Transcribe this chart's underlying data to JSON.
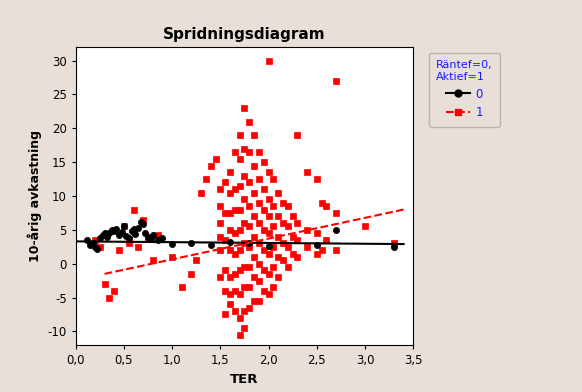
{
  "title": "Spridningsdiagram",
  "xlabel": "TER",
  "ylabel": "10-årig avkastning",
  "background_color": "#e8e0d8",
  "plot_bg_color": "#ffffff",
  "xlim": [
    0,
    3.5
  ],
  "ylim": [
    -12,
    32
  ],
  "xticks": [
    0.0,
    0.5,
    1.0,
    1.5,
    2.0,
    2.5,
    3.0,
    3.5
  ],
  "yticks": [
    -10,
    -5,
    0,
    5,
    10,
    15,
    20,
    25,
    30
  ],
  "legend_title": "Räntef=0,\nAktief=1",
  "series0_color": "#000000",
  "series1_color": "#ff0000",
  "series0_data": [
    [
      0.12,
      3.5
    ],
    [
      0.15,
      2.8
    ],
    [
      0.18,
      3.0
    ],
    [
      0.2,
      2.5
    ],
    [
      0.22,
      2.2
    ],
    [
      0.25,
      3.8
    ],
    [
      0.28,
      4.2
    ],
    [
      0.3,
      4.5
    ],
    [
      0.32,
      3.9
    ],
    [
      0.35,
      4.6
    ],
    [
      0.38,
      5.0
    ],
    [
      0.4,
      4.8
    ],
    [
      0.42,
      5.2
    ],
    [
      0.45,
      4.3
    ],
    [
      0.48,
      4.7
    ],
    [
      0.5,
      5.5
    ],
    [
      0.52,
      4.1
    ],
    [
      0.55,
      3.8
    ],
    [
      0.58,
      4.9
    ],
    [
      0.6,
      5.1
    ],
    [
      0.62,
      4.4
    ],
    [
      0.65,
      5.3
    ],
    [
      0.68,
      6.2
    ],
    [
      0.7,
      5.8
    ],
    [
      0.72,
      4.6
    ],
    [
      0.75,
      4.0
    ],
    [
      0.78,
      3.7
    ],
    [
      0.8,
      4.2
    ],
    [
      0.85,
      3.5
    ],
    [
      0.9,
      3.8
    ],
    [
      1.0,
      2.9
    ],
    [
      1.2,
      3.1
    ],
    [
      1.4,
      2.8
    ],
    [
      1.6,
      3.2
    ],
    [
      1.8,
      3.0
    ],
    [
      2.0,
      2.6
    ],
    [
      2.5,
      2.8
    ],
    [
      2.7,
      5.0
    ],
    [
      3.3,
      2.5
    ]
  ],
  "series1_data": [
    [
      0.2,
      3.5
    ],
    [
      0.25,
      2.5
    ],
    [
      0.3,
      -3.0
    ],
    [
      0.35,
      -5.0
    ],
    [
      0.4,
      -4.0
    ],
    [
      0.45,
      2.0
    ],
    [
      0.5,
      5.5
    ],
    [
      0.55,
      3.0
    ],
    [
      0.6,
      8.0
    ],
    [
      0.65,
      2.5
    ],
    [
      0.7,
      6.5
    ],
    [
      0.75,
      3.8
    ],
    [
      0.8,
      0.5
    ],
    [
      0.85,
      4.2
    ],
    [
      1.0,
      1.0
    ],
    [
      1.1,
      -3.5
    ],
    [
      1.2,
      -1.5
    ],
    [
      1.25,
      0.5
    ],
    [
      1.3,
      10.5
    ],
    [
      1.35,
      12.5
    ],
    [
      1.4,
      14.5
    ],
    [
      1.45,
      15.5
    ],
    [
      1.5,
      11.0
    ],
    [
      1.5,
      8.5
    ],
    [
      1.5,
      6.0
    ],
    [
      1.5,
      4.0
    ],
    [
      1.5,
      2.0
    ],
    [
      1.5,
      -2.0
    ],
    [
      1.55,
      12.0
    ],
    [
      1.55,
      7.5
    ],
    [
      1.55,
      3.5
    ],
    [
      1.55,
      -1.0
    ],
    [
      1.55,
      -4.0
    ],
    [
      1.55,
      -7.5
    ],
    [
      1.6,
      13.5
    ],
    [
      1.6,
      10.5
    ],
    [
      1.6,
      7.5
    ],
    [
      1.6,
      5.0
    ],
    [
      1.6,
      2.0
    ],
    [
      1.6,
      -2.0
    ],
    [
      1.6,
      -4.5
    ],
    [
      1.6,
      -6.0
    ],
    [
      1.65,
      16.5
    ],
    [
      1.65,
      11.0
    ],
    [
      1.65,
      8.0
    ],
    [
      1.65,
      4.5
    ],
    [
      1.65,
      1.5
    ],
    [
      1.65,
      -1.5
    ],
    [
      1.65,
      -4.0
    ],
    [
      1.65,
      -7.0
    ],
    [
      1.7,
      19.0
    ],
    [
      1.7,
      15.5
    ],
    [
      1.7,
      11.5
    ],
    [
      1.7,
      8.0
    ],
    [
      1.7,
      5.0
    ],
    [
      1.7,
      2.0
    ],
    [
      1.7,
      -1.0
    ],
    [
      1.7,
      -4.5
    ],
    [
      1.7,
      -8.0
    ],
    [
      1.7,
      -10.5
    ],
    [
      1.75,
      23.0
    ],
    [
      1.75,
      17.0
    ],
    [
      1.75,
      13.0
    ],
    [
      1.75,
      9.5
    ],
    [
      1.75,
      6.0
    ],
    [
      1.75,
      3.0
    ],
    [
      1.75,
      -0.5
    ],
    [
      1.75,
      -3.5
    ],
    [
      1.75,
      -7.0
    ],
    [
      1.75,
      -9.5
    ],
    [
      1.8,
      21.0
    ],
    [
      1.8,
      16.5
    ],
    [
      1.8,
      12.0
    ],
    [
      1.8,
      8.5
    ],
    [
      1.8,
      5.5
    ],
    [
      1.8,
      2.5
    ],
    [
      1.8,
      -0.5
    ],
    [
      1.8,
      -3.5
    ],
    [
      1.8,
      -6.5
    ],
    [
      1.85,
      19.0
    ],
    [
      1.85,
      14.5
    ],
    [
      1.85,
      10.5
    ],
    [
      1.85,
      7.0
    ],
    [
      1.85,
      4.0
    ],
    [
      1.85,
      1.0
    ],
    [
      1.85,
      -2.0
    ],
    [
      1.85,
      -5.5
    ],
    [
      1.9,
      16.5
    ],
    [
      1.9,
      12.5
    ],
    [
      1.9,
      9.0
    ],
    [
      1.9,
      6.0
    ],
    [
      1.9,
      3.0
    ],
    [
      1.9,
      0.0
    ],
    [
      1.9,
      -2.5
    ],
    [
      1.9,
      -5.5
    ],
    [
      1.95,
      15.0
    ],
    [
      1.95,
      11.0
    ],
    [
      1.95,
      8.0
    ],
    [
      1.95,
      5.0
    ],
    [
      1.95,
      2.0
    ],
    [
      1.95,
      -1.0
    ],
    [
      1.95,
      -4.0
    ],
    [
      2.0,
      30.0
    ],
    [
      2.0,
      13.5
    ],
    [
      2.0,
      9.5
    ],
    [
      2.0,
      7.0
    ],
    [
      2.0,
      4.5
    ],
    [
      2.0,
      1.5
    ],
    [
      2.0,
      -1.5
    ],
    [
      2.0,
      -4.5
    ],
    [
      2.05,
      12.5
    ],
    [
      2.05,
      8.5
    ],
    [
      2.05,
      5.5
    ],
    [
      2.05,
      2.5
    ],
    [
      2.05,
      -0.5
    ],
    [
      2.05,
      -3.5
    ],
    [
      2.1,
      10.5
    ],
    [
      2.1,
      7.0
    ],
    [
      2.1,
      4.0
    ],
    [
      2.1,
      1.0
    ],
    [
      2.1,
      -2.0
    ],
    [
      2.15,
      9.0
    ],
    [
      2.15,
      6.0
    ],
    [
      2.15,
      3.0
    ],
    [
      2.15,
      0.5
    ],
    [
      2.2,
      8.5
    ],
    [
      2.2,
      5.5
    ],
    [
      2.2,
      2.5
    ],
    [
      2.2,
      -0.5
    ],
    [
      2.25,
      7.0
    ],
    [
      2.25,
      4.0
    ],
    [
      2.25,
      1.5
    ],
    [
      2.3,
      19.0
    ],
    [
      2.3,
      6.0
    ],
    [
      2.3,
      3.5
    ],
    [
      2.3,
      1.0
    ],
    [
      2.4,
      13.5
    ],
    [
      2.4,
      5.0
    ],
    [
      2.4,
      2.5
    ],
    [
      2.5,
      12.5
    ],
    [
      2.5,
      4.5
    ],
    [
      2.5,
      1.5
    ],
    [
      2.55,
      9.0
    ],
    [
      2.55,
      2.0
    ],
    [
      2.6,
      8.5
    ],
    [
      2.6,
      3.5
    ],
    [
      2.7,
      27.0
    ],
    [
      2.7,
      7.5
    ],
    [
      2.7,
      2.0
    ],
    [
      3.0,
      5.5
    ],
    [
      3.3,
      3.0
    ]
  ],
  "trend0_x": [
    0.0,
    3.4
  ],
  "trend0_y": [
    3.3,
    2.9
  ],
  "trend1_x": [
    0.3,
    3.4
  ],
  "trend1_y": [
    -1.5,
    8.0
  ]
}
